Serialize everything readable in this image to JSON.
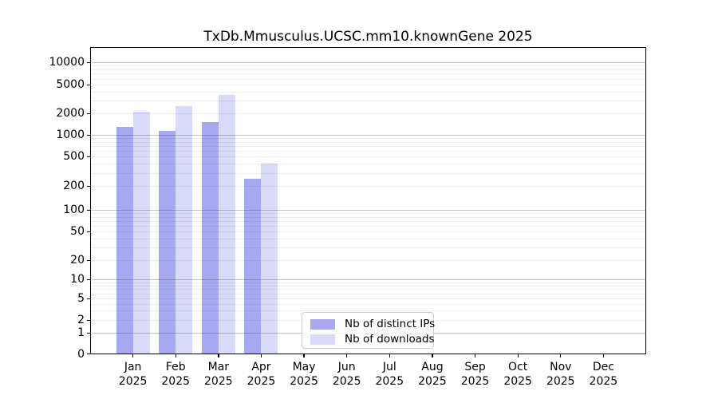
{
  "chart_data": {
    "type": "bar",
    "title": "TxDb.Mmusculus.UCSC.mm10.knownGene 2025",
    "months": [
      "Jan",
      "Feb",
      "Mar",
      "Apr",
      "May",
      "Jun",
      "Jul",
      "Aug",
      "Sep",
      "Oct",
      "Nov",
      "Dec"
    ],
    "year": "2025",
    "xlabel": "",
    "ylabel": "",
    "yscale": "symlog",
    "ylim": [
      0,
      16000
    ],
    "grid": true,
    "yticks": [
      0,
      1,
      2,
      5,
      10,
      20,
      50,
      100,
      200,
      500,
      1000,
      2000,
      5000,
      10000
    ],
    "ytick_labels": [
      "0",
      "1",
      "2",
      "5",
      "10",
      "20",
      "50",
      "100",
      "200",
      "500",
      "1000",
      "2000",
      "5000",
      "10000"
    ],
    "legend_position": "inside lower center",
    "series": [
      {
        "name": "Nb of distinct IPs",
        "color": "#a8a8f2",
        "values": [
          1300,
          1130,
          1500,
          250,
          null,
          null,
          null,
          null,
          null,
          null,
          null,
          null
        ]
      },
      {
        "name": "Nb of downloads",
        "color": "#d9d9f9",
        "values": [
          2100,
          2500,
          3600,
          400,
          null,
          null,
          null,
          null,
          null,
          null,
          null,
          null
        ]
      }
    ]
  }
}
